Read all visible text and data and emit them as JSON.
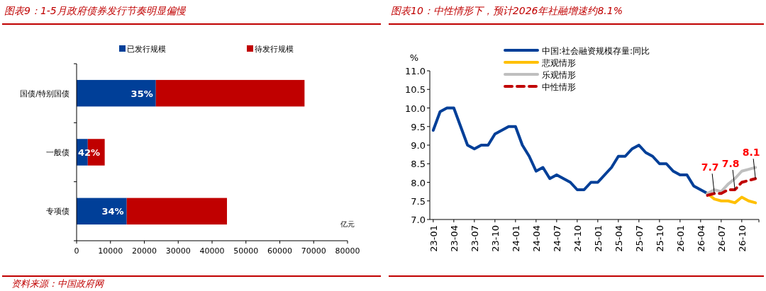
{
  "chart_data": [
    {
      "type": "bar",
      "orientation": "horizontal",
      "stacked": true,
      "title": "图表9：1-5月政府债券发行节奏明显偏慢",
      "xlabel": "亿元",
      "categories": [
        "国债/特别国债",
        "一般债",
        "专项债"
      ],
      "series": [
        {
          "name": "已发行规模",
          "color": "#003f98",
          "values": [
            23400,
            3300,
            14800
          ]
        },
        {
          "name": "待发行规模",
          "color": "#c00000",
          "values": [
            43900,
            5000,
            29600
          ]
        }
      ],
      "xlim": [
        0,
        80000
      ],
      "xticks": [
        0,
        10000,
        20000,
        30000,
        40000,
        50000,
        60000,
        70000,
        80000
      ],
      "legend": "top",
      "grid": false,
      "annotations": [
        {
          "text": "35%",
          "x": 23400,
          "y": "国债/特别国债"
        },
        {
          "text": "42%",
          "x": 3300,
          "y": "一般债"
        },
        {
          "text": "34%",
          "x": 14800,
          "y": "专项债"
        },
        "资料来源：中国政府网"
      ]
    },
    {
      "type": "line",
      "title": "图表10：中性情形下，预计2026年社融增速约8.1%",
      "ylabel": "%",
      "categories": [
        "23-01",
        null,
        null,
        "23-04",
        null,
        null,
        "23-07",
        null,
        null,
        "23-10",
        null,
        null,
        "24-01",
        null,
        null,
        "24-04",
        null,
        null,
        "24-07",
        null,
        null,
        "24-10",
        null,
        null,
        "25-01",
        null,
        null,
        "25-04",
        null,
        null,
        "25-07",
        null,
        null,
        "25-10",
        null,
        null,
        "26-01",
        null,
        null,
        "26-04",
        null,
        null,
        "26-07",
        null,
        null,
        "26-10",
        null,
        null
      ],
      "series": [
        {
          "name": "中国:社会融资规模存量:同比",
          "color": "#003f98",
          "line_style": "solid",
          "values": [
            9.4,
            9.9,
            10.0,
            10.0,
            9.5,
            9.0,
            8.9,
            9.0,
            9.0,
            9.3,
            9.4,
            9.5,
            9.5,
            9.0,
            8.7,
            8.3,
            8.4,
            8.1,
            8.2,
            8.1,
            8.0,
            7.8,
            7.8,
            8.0,
            8.0,
            8.2,
            8.4,
            8.7,
            8.7,
            8.9,
            9.0,
            8.8,
            8.7,
            8.5,
            8.5,
            8.3,
            8.2,
            8.2,
            7.9,
            7.8,
            7.7,
            null,
            null,
            null,
            null,
            null,
            null,
            null
          ]
        },
        {
          "name": "悲观情形",
          "color": "#ffc000",
          "line_style": "solid",
          "values": [
            null,
            null,
            null,
            null,
            null,
            null,
            null,
            null,
            null,
            null,
            null,
            null,
            null,
            null,
            null,
            null,
            null,
            null,
            null,
            null,
            null,
            null,
            null,
            null,
            null,
            null,
            null,
            null,
            null,
            null,
            null,
            null,
            null,
            null,
            null,
            null,
            null,
            null,
            null,
            null,
            7.7,
            7.55,
            7.5,
            7.5,
            7.45,
            7.6,
            7.5,
            7.45
          ]
        },
        {
          "name": "乐观情形",
          "color": "#bfbfbf",
          "line_style": "solid",
          "values": [
            null,
            null,
            null,
            null,
            null,
            null,
            null,
            null,
            null,
            null,
            null,
            null,
            null,
            null,
            null,
            null,
            null,
            null,
            null,
            null,
            null,
            null,
            null,
            null,
            null,
            null,
            null,
            null,
            null,
            null,
            null,
            null,
            null,
            null,
            null,
            null,
            null,
            null,
            null,
            null,
            7.7,
            7.8,
            7.75,
            7.95,
            8.1,
            8.3,
            8.35,
            8.4
          ]
        },
        {
          "name": "中性情形",
          "color": "#c00000",
          "line_style": "dashed",
          "values": [
            null,
            null,
            null,
            null,
            null,
            null,
            null,
            null,
            null,
            null,
            null,
            null,
            null,
            null,
            null,
            null,
            null,
            null,
            null,
            null,
            null,
            null,
            null,
            null,
            null,
            null,
            null,
            null,
            null,
            null,
            null,
            null,
            null,
            null,
            null,
            null,
            null,
            null,
            null,
            null,
            7.65,
            7.7,
            7.7,
            7.8,
            7.8,
            8.0,
            8.05,
            8.1
          ],
          "value_labels": [
            null,
            null,
            null,
            null,
            null,
            null,
            null,
            null,
            null,
            null,
            null,
            null,
            null,
            null,
            null,
            null,
            null,
            null,
            null,
            null,
            null,
            null,
            null,
            null,
            null,
            null,
            null,
            null,
            null,
            null,
            null,
            null,
            null,
            null,
            null,
            null,
            null,
            null,
            null,
            null,
            null,
            "7.7",
            null,
            null,
            "7.8",
            null,
            null,
            "8.1"
          ]
        }
      ],
      "ylim": [
        7.0,
        11.0
      ],
      "yticks": [
        {
          "value": 7,
          "label": "7.0"
        },
        {
          "value": 7.5,
          "label": "7.5"
        },
        {
          "value": 8,
          "label": "8.0"
        },
        {
          "value": 8.5,
          "label": "8.5"
        },
        {
          "value": 9,
          "label": "9.0"
        },
        {
          "value": 9.5,
          "label": "9.5"
        },
        {
          "value": 10,
          "label": "10.0"
        },
        {
          "value": 10.5,
          "label": "10.5"
        },
        {
          "value": 11,
          "label": "11.0"
        }
      ],
      "legend": "top",
      "grid": false
    }
  ]
}
